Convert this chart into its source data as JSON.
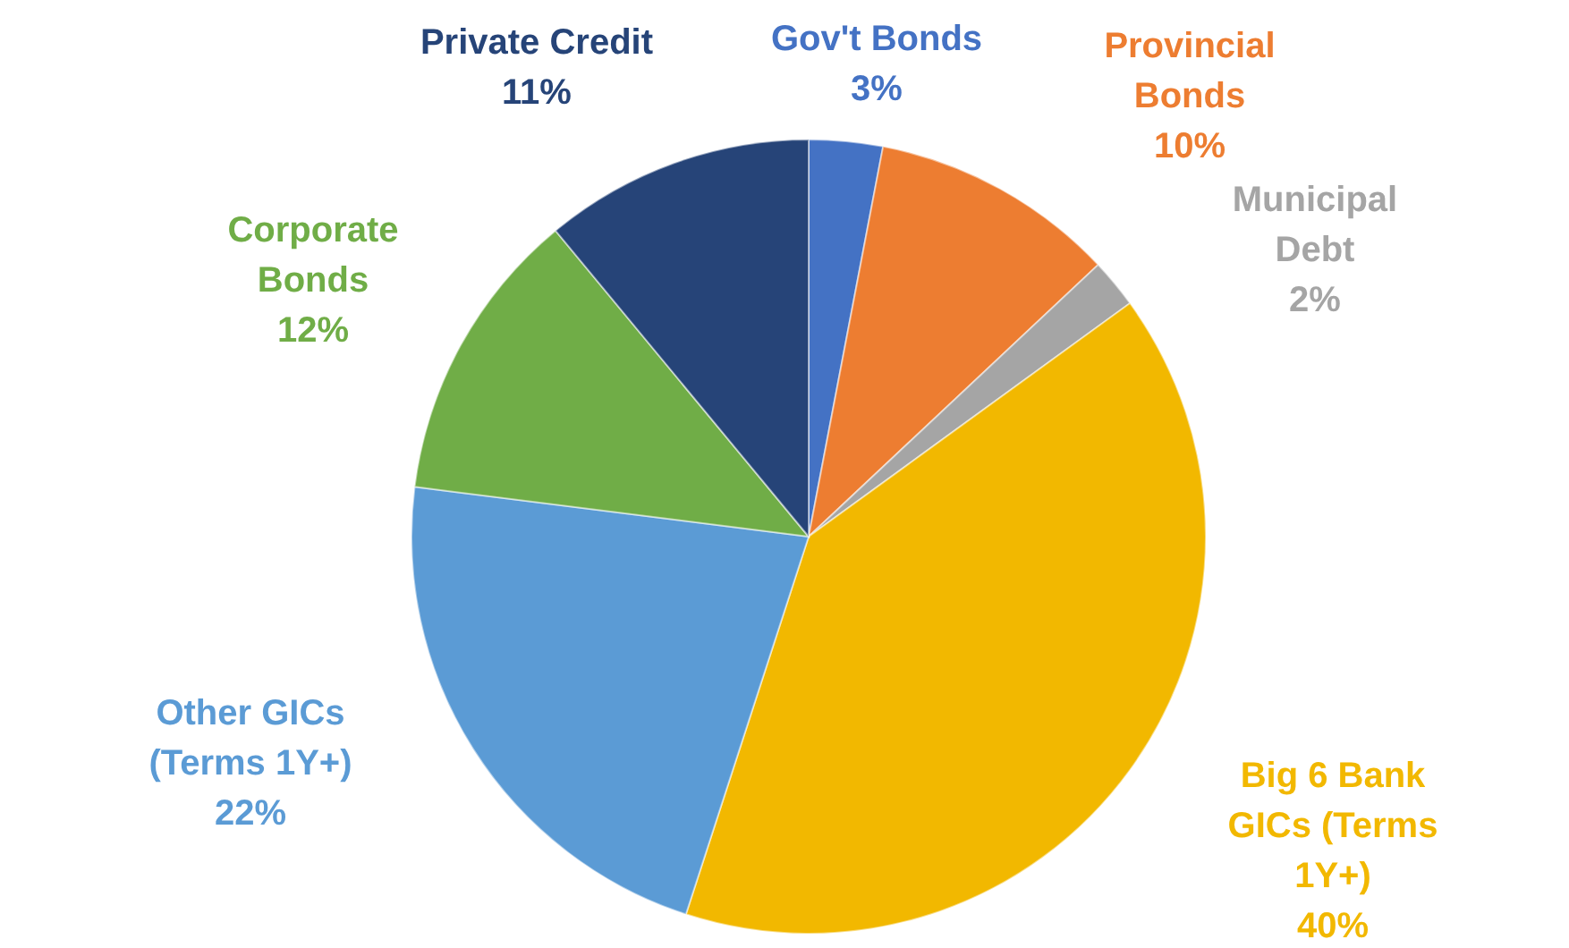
{
  "chart_data": {
    "type": "pie",
    "categories": [
      "Gov't Bonds",
      "Provincial Bonds",
      "Municipal Debt",
      "Big 6 Bank GICs (Terms 1Y+)",
      "Other GICs (Terms 1Y+)",
      "Corporate Bonds",
      "Private Credit"
    ],
    "values": [
      3,
      10,
      2,
      40,
      22,
      12,
      11
    ],
    "value_labels": [
      "3%",
      "10%",
      "2%",
      "40%",
      "22%",
      "12%",
      "11%"
    ],
    "colors": [
      "#4472c4",
      "#ed7d31",
      "#a5a5a5",
      "#f2b800",
      "#5b9bd5",
      "#70ad47",
      "#264478"
    ]
  }
}
